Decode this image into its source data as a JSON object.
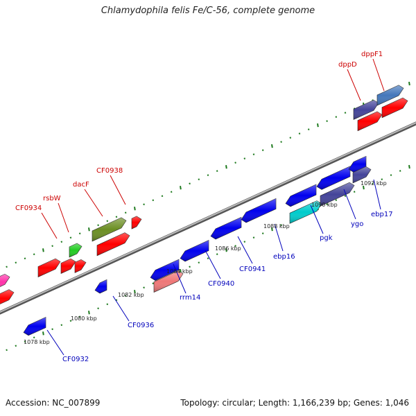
{
  "header": {
    "title": "Chlamydophila felis Fe/C-56, complete genome"
  },
  "footer": {
    "accession": "Accession: NC_007899",
    "topology": "Topology: circular; Length: 1,166,239 bp; Genes: 1,046"
  },
  "colors": {
    "forward_label": "#cc0000",
    "reverse_label": "#0000bb",
    "backbone": "#888888",
    "tick": "#1e7a1e"
  },
  "scale_labels": [
    "1078 kbp",
    "1080 kbp",
    "1082 kbp",
    "1084 kbp",
    "1086 kbp",
    "1088 kbp",
    "1090 kbp",
    "1092 kbp"
  ],
  "forward_gene_labels": [
    "CF0934",
    "rsbW",
    "dacF",
    "CF0938",
    "dppD",
    "dppF1"
  ],
  "reverse_gene_labels": [
    "CF0932",
    "CF0936",
    "rrm14",
    "CF0940",
    "CF0941",
    "ebp16",
    "pgk",
    "ygo",
    "ebp17"
  ]
}
